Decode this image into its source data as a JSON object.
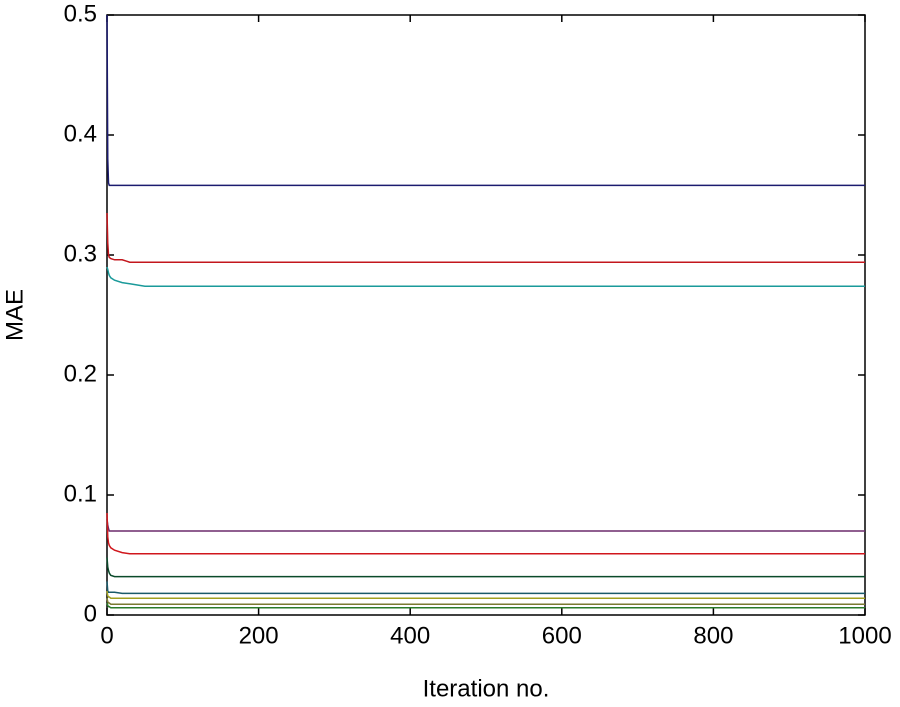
{
  "chart_data": {
    "type": "line",
    "xlabel": "Iteration no.",
    "ylabel": "MAE",
    "x": [
      0,
      1,
      2,
      3,
      5,
      10,
      20,
      30,
      50,
      1000
    ],
    "series": [
      {
        "color": "#1b1b6f",
        "values": [
          0.5,
          0.38,
          0.36,
          0.358,
          0.358,
          0.358,
          0.358,
          0.358,
          0.358,
          0.358
        ]
      },
      {
        "color": "#c3161c",
        "values": [
          0.335,
          0.31,
          0.3,
          0.298,
          0.297,
          0.296,
          0.296,
          0.294,
          0.294,
          0.294
        ]
      },
      {
        "color": "#1a9a9a",
        "values": [
          0.29,
          0.288,
          0.285,
          0.283,
          0.281,
          0.279,
          0.277,
          0.276,
          0.274,
          0.274
        ]
      },
      {
        "color": "#6b2a6b",
        "values": [
          0.08,
          0.075,
          0.072,
          0.07,
          0.07,
          0.07,
          0.07,
          0.07,
          0.07,
          0.07
        ]
      },
      {
        "color": "#d0161c",
        "values": [
          0.085,
          0.065,
          0.06,
          0.058,
          0.056,
          0.054,
          0.052,
          0.051,
          0.051,
          0.051
        ]
      },
      {
        "color": "#0a4a2a",
        "values": [
          0.048,
          0.04,
          0.037,
          0.035,
          0.033,
          0.032,
          0.032,
          0.032,
          0.032,
          0.032
        ]
      },
      {
        "color": "#1a5a6a",
        "values": [
          0.028,
          0.02,
          0.019,
          0.019,
          0.019,
          0.019,
          0.018,
          0.018,
          0.018,
          0.018
        ]
      },
      {
        "color": "#a0a020",
        "values": [
          0.02,
          0.016,
          0.015,
          0.015,
          0.014,
          0.014,
          0.014,
          0.014,
          0.014,
          0.014
        ]
      },
      {
        "color": "#7a7a30",
        "values": [
          0.014,
          0.011,
          0.01,
          0.01,
          0.009,
          0.009,
          0.009,
          0.009,
          0.009,
          0.009
        ]
      },
      {
        "color": "#2a7a2a",
        "values": [
          0.01,
          0.008,
          0.007,
          0.007,
          0.006,
          0.006,
          0.006,
          0.006,
          0.006,
          0.006
        ]
      }
    ],
    "xlim": [
      0,
      1000
    ],
    "xticks": [
      0,
      200,
      400,
      600,
      800,
      1000
    ],
    "ylim": [
      0,
      0.5
    ],
    "yticks": [
      0,
      0.1,
      0.2,
      0.3,
      0.4,
      0.5
    ]
  }
}
